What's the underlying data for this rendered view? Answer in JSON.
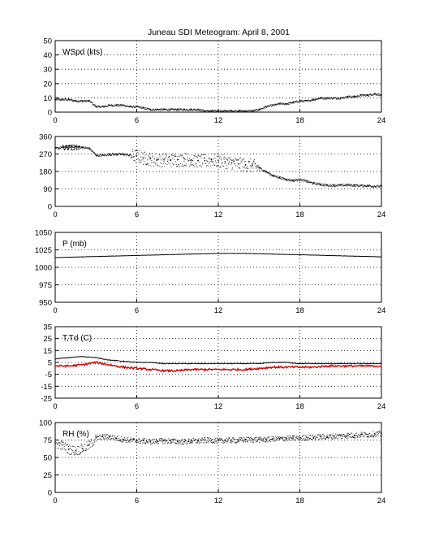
{
  "title": "Juneau SDI Meteogram:",
  "date": "April  8, 2001",
  "chart_data": [
    {
      "id": "wspd",
      "type": "scatter",
      "label": "WSpd (kts)",
      "xlim": [
        0,
        24
      ],
      "ylim": [
        0,
        50
      ],
      "xticks": [
        "0",
        "6",
        "12",
        "18",
        "24"
      ],
      "yticks": [
        "0",
        "10",
        "20",
        "30",
        "40",
        "50"
      ],
      "grid": true,
      "series": [
        {
          "color": "#000000",
          "x": [
            0,
            0.5,
            1,
            1.5,
            2,
            2.5,
            3,
            3.5,
            4,
            4.5,
            5,
            5.5,
            6,
            6.5,
            7,
            7.5,
            8,
            8.5,
            9,
            9.5,
            10,
            10.5,
            11,
            11.5,
            12,
            12.5,
            13,
            13.5,
            14,
            14.5,
            15,
            15.5,
            16,
            16.5,
            17,
            17.5,
            18,
            18.5,
            19,
            19.5,
            20,
            20.5,
            21,
            21.5,
            22,
            22.5,
            23,
            23.5,
            24
          ],
          "y": [
            9,
            9,
            9,
            8,
            8,
            8,
            4,
            4,
            5,
            5,
            5,
            4,
            4,
            3,
            2,
            2,
            2,
            2,
            2,
            2,
            2,
            2,
            1,
            1,
            1,
            1,
            1,
            1,
            1,
            1,
            2,
            4,
            5,
            6,
            6,
            7,
            8,
            8,
            9,
            10,
            10,
            10,
            10,
            11,
            11,
            12,
            12,
            13,
            12
          ]
        }
      ]
    },
    {
      "id": "wdir",
      "type": "scatter",
      "label": "WDir",
      "xlim": [
        0,
        24
      ],
      "ylim": [
        0,
        360
      ],
      "xticks": [
        "0",
        "6",
        "12",
        "18",
        "24"
      ],
      "yticks": [
        "0",
        "90",
        "180",
        "270",
        "360"
      ],
      "grid": true,
      "series": [
        {
          "color": "#000000",
          "x": [
            0,
            0.5,
            1,
            1.5,
            2,
            2.5,
            3,
            3.5,
            4,
            4.5,
            5,
            5.5,
            6,
            6.5,
            7,
            7.5,
            8,
            8.5,
            9,
            9.5,
            10,
            10.5,
            11,
            11.5,
            12,
            12.5,
            13,
            13.5,
            14,
            14.5,
            15,
            15.5,
            16,
            16.5,
            17,
            17.5,
            18,
            18.5,
            19,
            19.5,
            20,
            20.5,
            21,
            21.5,
            22,
            22.5,
            23,
            23.5,
            24
          ],
          "y": [
            300,
            305,
            310,
            310,
            305,
            300,
            265,
            265,
            270,
            270,
            270,
            265,
            260,
            250,
            245,
            240,
            240,
            240,
            240,
            245,
            240,
            235,
            235,
            240,
            235,
            230,
            225,
            220,
            215,
            210,
            200,
            180,
            160,
            150,
            140,
            135,
            140,
            130,
            120,
            115,
            110,
            110,
            110,
            112,
            110,
            108,
            108,
            105,
            105
          ]
        }
      ]
    },
    {
      "id": "pres",
      "type": "line",
      "label": "P (mb)",
      "xlim": [
        0,
        24
      ],
      "ylim": [
        950,
        1050
      ],
      "xticks": [
        "0",
        "6",
        "12",
        "18",
        "24"
      ],
      "yticks": [
        "950",
        "975",
        "1000",
        "1025",
        "1050"
      ],
      "grid": true,
      "series": [
        {
          "color": "#000000",
          "x": [
            0,
            2,
            4,
            6,
            8,
            10,
            12,
            14,
            16,
            18,
            20,
            22,
            24
          ],
          "y": [
            1014,
            1015,
            1016,
            1017,
            1018,
            1019,
            1020,
            1020,
            1019,
            1018,
            1017,
            1016,
            1015
          ]
        }
      ]
    },
    {
      "id": "temp",
      "type": "line",
      "label": "T,Td (C)",
      "xlim": [
        0,
        24
      ],
      "ylim": [
        -25,
        35
      ],
      "xticks": [
        "0",
        "6",
        "12",
        "18",
        "24"
      ],
      "yticks": [
        "-25",
        "-15",
        "-5",
        "5",
        "15",
        "25",
        "35"
      ],
      "grid": true,
      "series": [
        {
          "color": "#000000",
          "x": [
            0,
            1,
            2,
            3,
            4,
            5,
            6,
            7,
            8,
            9,
            10,
            11,
            12,
            13,
            14,
            15,
            16,
            17,
            18,
            19,
            20,
            21,
            22,
            23,
            24
          ],
          "y": [
            8,
            9,
            10,
            9,
            7,
            6,
            5,
            5,
            4,
            4,
            4,
            4,
            4,
            4,
            4,
            4,
            5,
            5,
            4,
            4,
            4,
            4,
            4,
            4,
            4
          ]
        },
        {
          "color": "#d00000",
          "x": [
            0,
            1,
            2,
            3,
            4,
            5,
            6,
            7,
            8,
            9,
            10,
            11,
            12,
            13,
            14,
            15,
            16,
            17,
            18,
            19,
            20,
            21,
            22,
            23,
            24
          ],
          "y": [
            2,
            2,
            3,
            5,
            3,
            1,
            0,
            -1,
            -2,
            -2,
            -1,
            -1,
            -1,
            -1,
            -1,
            0,
            1,
            1,
            1,
            1,
            2,
            2,
            2,
            2,
            2
          ]
        }
      ]
    },
    {
      "id": "rh",
      "type": "scatter",
      "label": "RH (%)",
      "xlim": [
        0,
        24
      ],
      "ylim": [
        0,
        100
      ],
      "xticks": [
        "0",
        "6",
        "12",
        "18",
        "24"
      ],
      "yticks": [
        "0",
        "25",
        "50",
        "75",
        "100"
      ],
      "grid": true,
      "series": [
        {
          "color": "#000000",
          "x": [
            0,
            0.5,
            1,
            1.5,
            2,
            2.5,
            3,
            3.5,
            4,
            4.5,
            5,
            5.5,
            6,
            6.5,
            7,
            7.5,
            8,
            8.5,
            9,
            9.5,
            10,
            10.5,
            11,
            11.5,
            12,
            12.5,
            13,
            13.5,
            14,
            14.5,
            15,
            15.5,
            16,
            16.5,
            17,
            17.5,
            18,
            18.5,
            19,
            19.5,
            20,
            20.5,
            21,
            21.5,
            22,
            22.5,
            23,
            23.5,
            24
          ],
          "y": [
            70,
            68,
            62,
            60,
            63,
            68,
            78,
            80,
            80,
            78,
            76,
            75,
            74,
            74,
            73,
            74,
            74,
            74,
            73,
            73,
            74,
            74,
            75,
            75,
            74,
            75,
            75,
            75,
            76,
            76,
            76,
            76,
            77,
            77,
            78,
            78,
            78,
            79,
            79,
            80,
            80,
            81,
            81,
            82,
            82,
            83,
            83,
            84,
            84
          ]
        }
      ]
    }
  ]
}
